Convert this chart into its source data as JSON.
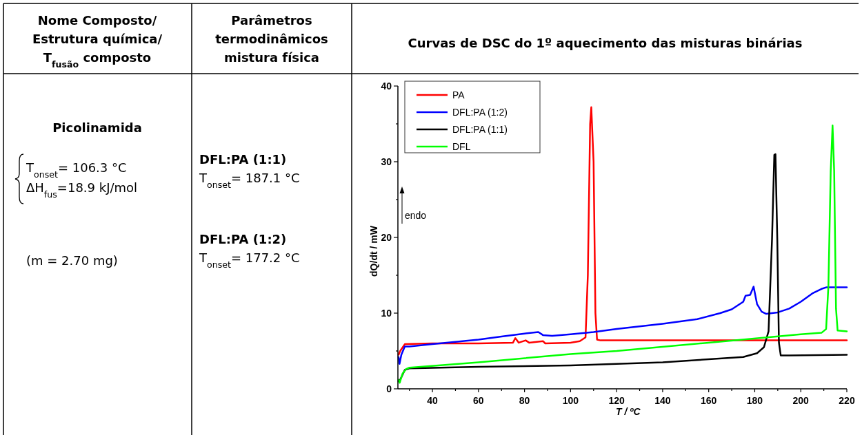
{
  "chart_data": [
    {
      "type": "other",
      "annotations": [
        "Nome Composto/",
        "Estrutura química/",
        "T$_{fusão}$ composto",
        "Parâmetros",
        "termodinâmicos",
        "mistura física",
        "Picolinamida",
        "T$_{onset}$= 106.3 °C",
        "ΔH$_{fus}$=18.9 kJ/mol",
        "(m =  2.70 mg)",
        "DFL:PA (1:1)",
        "T$_{onset}$= 187.1 °C",
        "DFL:PA (1:2)",
        "T$_{onset}$=  177.2 °C"
      ]
    },
    {
      "type": "line",
      "title": "Curvas de DSC do 1º aquecimento das misturas binárias",
      "xlabel": "T / ºC",
      "ylabel": "dQ/dt / mW",
      "annotations": [
        "endo"
      ],
      "xlim": [
        25,
        220
      ],
      "ylim": [
        0,
        40
      ],
      "xticks": [
        {
          "value": 30,
          "label": null
        },
        40,
        {
          "value": 50,
          "label": null
        },
        60,
        {
          "value": 70,
          "label": null
        },
        80,
        {
          "value": 90,
          "label": null
        },
        100,
        {
          "value": 110,
          "label": null
        },
        120,
        {
          "value": 130,
          "label": null
        },
        140,
        {
          "value": 150,
          "label": null
        },
        160,
        {
          "value": 170,
          "label": null
        },
        180,
        {
          "value": 190,
          "label": null
        },
        200,
        {
          "value": 210,
          "label": null
        },
        220
      ],
      "yticks": [
        0,
        {
          "value": 5,
          "label": null
        },
        10,
        {
          "value": 15,
          "label": null
        },
        20,
        {
          "value": 25,
          "label": null
        },
        30,
        {
          "value": 35,
          "label": null
        },
        40
      ],
      "grid": false,
      "legend": "top left",
      "marker": "none",
      "line_style": "solid",
      "series": [
        {
          "name": "PA",
          "color": "#ff0000",
          "x": [
            25.3,
            26,
            28,
            40,
            60,
            75,
            76,
            77.5,
            80.5,
            82,
            88,
            89,
            100,
            104,
            106.5,
            107.5,
            108.5,
            109,
            110,
            110.8,
            111.5,
            113,
            150,
            220
          ],
          "values": [
            4.5,
            5.0,
            5.9,
            6.0,
            6.0,
            6.1,
            6.7,
            6.1,
            6.4,
            6.1,
            6.3,
            6.0,
            6.1,
            6.3,
            6.8,
            15,
            35,
            37.2,
            30,
            10,
            6.5,
            6.4,
            6.4,
            6.4
          ]
        },
        {
          "name": "DFL:PA (1:2)",
          "color": "#0000ff",
          "x": [
            25.3,
            25.7,
            26.5,
            28,
            30,
            40,
            60,
            70,
            80,
            86,
            88,
            92,
            100,
            110,
            120,
            140,
            155,
            165,
            170,
            175,
            176,
            178,
            179.5,
            181,
            183,
            185,
            190,
            195,
            200,
            205,
            209,
            211,
            220
          ],
          "values": [
            4.2,
            3.3,
            4.5,
            5.6,
            5.6,
            5.9,
            6.5,
            6.9,
            7.3,
            7.5,
            7.1,
            7.0,
            7.2,
            7.5,
            7.9,
            8.6,
            9.2,
            10.0,
            10.5,
            11.5,
            12.3,
            12.4,
            13.5,
            11.2,
            10.2,
            9.9,
            10.1,
            10.6,
            11.5,
            12.6,
            13.2,
            13.4,
            13.4
          ]
        },
        {
          "name": "DFL:PA (1:1)",
          "color": "#000000",
          "x": [
            25.3,
            26,
            28,
            30,
            60,
            100,
            120,
            140,
            160,
            175,
            181,
            184,
            186,
            187.5,
            188.5,
            189,
            189.8,
            190.5,
            191.3,
            195,
            220
          ],
          "values": [
            1.0,
            1.2,
            2.5,
            2.7,
            2.9,
            3.1,
            3.3,
            3.5,
            3.9,
            4.2,
            4.7,
            5.5,
            7.6,
            19.7,
            30.9,
            31.0,
            19.7,
            6.1,
            4.4,
            4.4,
            4.5
          ]
        },
        {
          "name": "DFL",
          "color": "#00ff00",
          "x": [
            25.3,
            25.8,
            27,
            28.5,
            30,
            60,
            100,
            120,
            160,
            200,
            209,
            211,
            212,
            213,
            213.8,
            214.5,
            215.3,
            216,
            220
          ],
          "values": [
            1.2,
            0.8,
            2.0,
            2.6,
            2.8,
            3.5,
            4.6,
            5.0,
            6.1,
            7.2,
            7.4,
            7.9,
            13.6,
            28.8,
            34.8,
            28.8,
            10.6,
            7.7,
            7.6
          ]
        }
      ]
    }
  ]
}
